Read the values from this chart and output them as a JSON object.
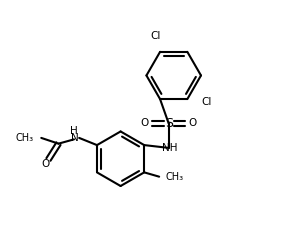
{
  "background_color": "#ffffff",
  "line_color": "#000000",
  "bond_width": 1.5,
  "figsize": [
    2.9,
    2.52
  ],
  "dpi": 100,
  "xlim": [
    0,
    10
  ],
  "ylim": [
    0,
    8.68
  ]
}
